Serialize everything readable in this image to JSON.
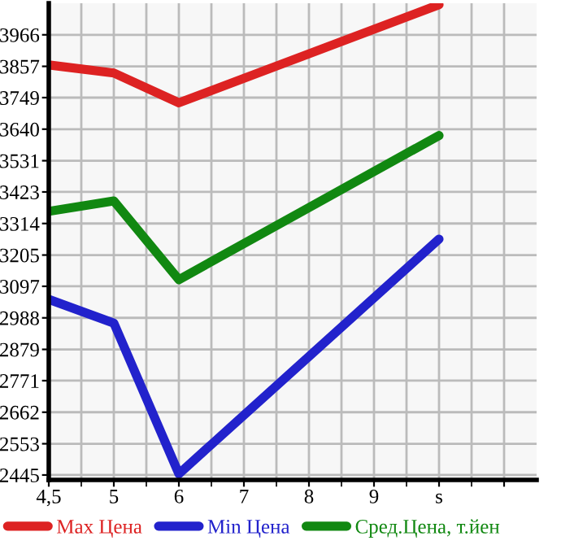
{
  "chart_data": {
    "type": "line",
    "categories": [
      "4,5",
      "5",
      "6",
      "7",
      "8",
      "9",
      "s",
      null
    ],
    "series": [
      {
        "name": "Max Цена",
        "color": "#dd2222",
        "values": [
          3862,
          3834,
          3731,
          null,
          null,
          null,
          4070,
          null
        ]
      },
      {
        "name": "Min Цена",
        "color": "#2222cc",
        "values": [
          3052,
          2970,
          2449,
          null,
          null,
          null,
          3260,
          null
        ]
      },
      {
        "name": "Сред.Цена, т.йен",
        "color": "#118811",
        "values": [
          3356,
          3392,
          3120,
          null,
          null,
          null,
          3618,
          null
        ]
      }
    ],
    "ylim": [
      2428,
      4075
    ],
    "yticks": [
      2445,
      2553,
      2662,
      2771,
      2879,
      2988,
      3097,
      3205,
      3314,
      3423,
      3531,
      3640,
      3749,
      3857,
      3966
    ],
    "grid": true,
    "legend": "bottom",
    "marker": "none",
    "line_style": "solid"
  }
}
